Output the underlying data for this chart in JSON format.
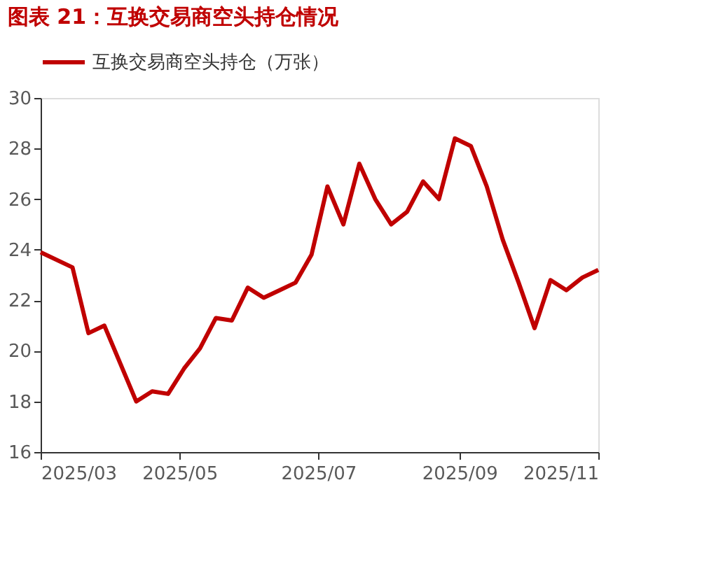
{
  "chart_data": {
    "type": "line",
    "title": "图表 21：互换交易商空头持仓情况",
    "x": [
      "2025-03-01",
      "2025-03-15",
      "2025-03-22",
      "2025-03-29",
      "2025-04-12",
      "2025-04-19",
      "2025-04-26",
      "2025-05-03",
      "2025-05-10",
      "2025-05-17",
      "2025-05-24",
      "2025-05-31",
      "2025-06-07",
      "2025-06-14",
      "2025-06-21",
      "2025-06-28",
      "2025-07-05",
      "2025-07-12",
      "2025-07-19",
      "2025-07-26",
      "2025-08-02",
      "2025-08-09",
      "2025-08-16",
      "2025-08-23",
      "2025-08-30",
      "2025-09-06",
      "2025-09-13",
      "2025-09-20",
      "2025-09-27",
      "2025-10-04",
      "2025-10-11",
      "2025-10-18",
      "2025-10-25",
      "2025-11-01"
    ],
    "series": [
      {
        "name": "互换交易商空头持仓（万张）",
        "color": "#c00000",
        "values": [
          23.9,
          23.3,
          20.7,
          21.0,
          18.0,
          18.4,
          18.3,
          19.3,
          20.1,
          21.3,
          21.2,
          22.5,
          22.1,
          22.4,
          22.7,
          23.8,
          26.5,
          25.0,
          27.4,
          26.0,
          25.0,
          25.5,
          26.7,
          26.0,
          28.4,
          28.1,
          26.5,
          24.4,
          22.7,
          20.9,
          22.8,
          22.4,
          22.9,
          23.2
        ]
      }
    ],
    "xlim": [
      "2025-03-01",
      "2025-11-01"
    ],
    "xticks": [
      {
        "value": "2025-03-01",
        "label": "2025/03"
      },
      {
        "value": "2025-05-01",
        "label": "2025/05"
      },
      {
        "value": "2025-07-01",
        "label": "2025/07"
      },
      {
        "value": "2025-09-01",
        "label": "2025/09"
      },
      {
        "value": "2025-11-01",
        "label": "2025/11"
      }
    ],
    "ylim": [
      16,
      30
    ],
    "yticks": [
      16,
      18,
      20,
      22,
      24,
      26,
      28,
      30
    ],
    "grid": false,
    "legend": "top",
    "marker": "none",
    "line_style": "solid"
  }
}
